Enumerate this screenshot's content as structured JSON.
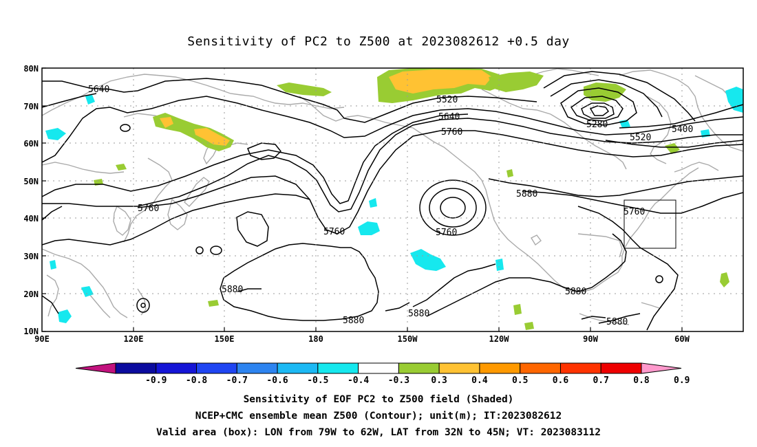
{
  "title": "Sensitivity of PC2 to Z500 at 2023082612 +0.5 day",
  "lat_labels": [
    "80N",
    "70N",
    "60N",
    "50N",
    "40N",
    "30N",
    "20N",
    "10N"
  ],
  "lon_labels": [
    "90E",
    "120E",
    "150E",
    "180",
    "150W",
    "120W",
    "90W",
    "60W"
  ],
  "contour_labels": [
    "5640",
    "5520",
    "5640",
    "5760",
    "5280",
    "5400",
    "5520",
    "5760",
    "5760",
    "5760",
    "5880",
    "5760",
    "5880",
    "5880",
    "5880",
    "5880",
    "5880"
  ],
  "colorbar": {
    "labels": [
      "-0.9",
      "-0.8",
      "-0.7",
      "-0.6",
      "-0.5",
      "-0.4",
      "-0.3",
      "0.3",
      "0.4",
      "0.5",
      "0.6",
      "0.7",
      "0.8",
      "0.9"
    ],
    "colors": [
      "#c2127e",
      "#0b0b9e",
      "#1515d6",
      "#1f45f2",
      "#2d84f0",
      "#1cb9f4",
      "#16e8ee",
      "#ffffff",
      "#99cc33",
      "#ffc233",
      "#ff9900",
      "#ff6600",
      "#ff3300",
      "#ee0000",
      "#ff99cc"
    ]
  },
  "captions": [
    "Sensitivity of EOF PC2 to Z500 field (Shaded)",
    "NCEP+CMC ensemble mean Z500 (Contour); unit(m); IT:2023082612",
    "Valid area (box): LON from 79W to 62W, LAT from 32N to 45N; VT: 2023083112"
  ],
  "valid_box": {
    "lon_range": [
      "79W",
      "62W"
    ],
    "lat_range": [
      "32N",
      "45N"
    ]
  }
}
